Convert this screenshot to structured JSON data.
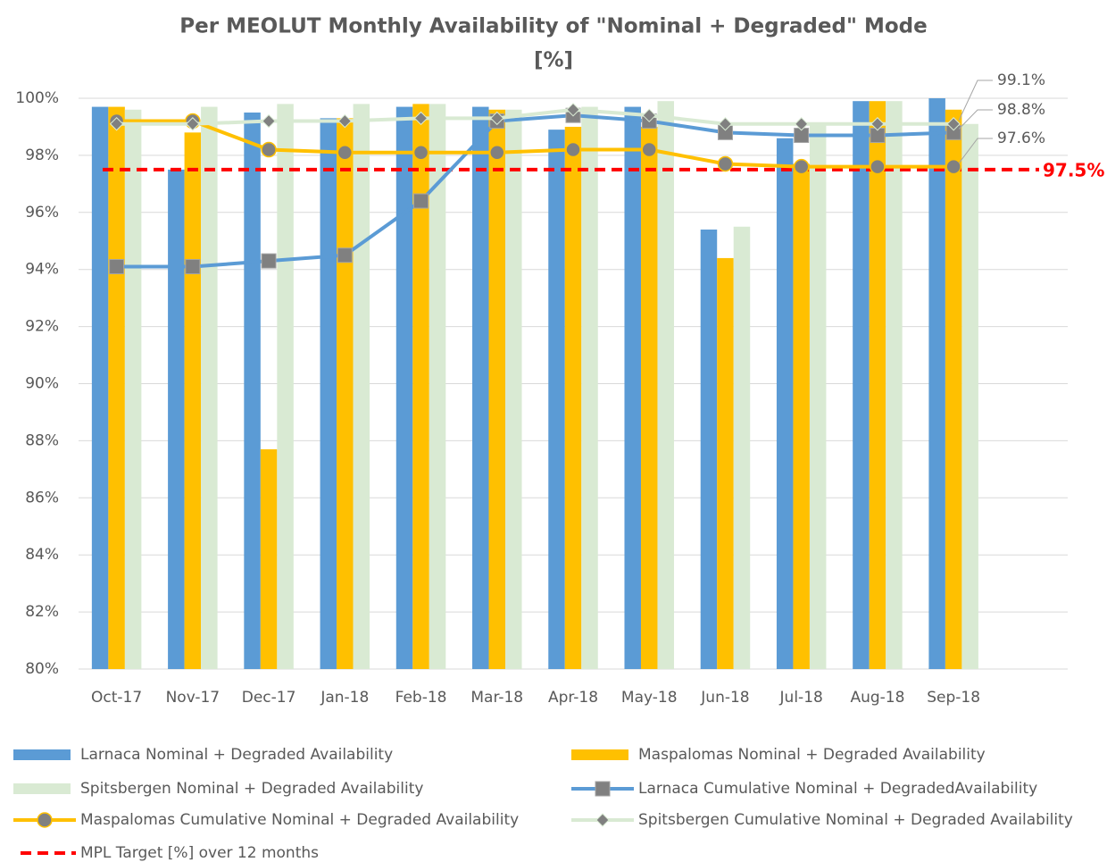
{
  "chart_data": {
    "type": "bar",
    "title": [
      "Per MEOLUT Monthly Availability of \"Nominal + Degraded\" Mode",
      "[%]"
    ],
    "categories": [
      "Oct-17",
      "Nov-17",
      "Dec-17",
      "Jan-18",
      "Feb-18",
      "Mar-18",
      "Apr-18",
      "May-18",
      "Jun-18",
      "Jul-18",
      "Aug-18",
      "Sep-18",
      null
    ],
    "ylim": [
      80,
      100
    ],
    "yticks": [
      {
        "value": 80,
        "label": "80%"
      },
      {
        "value": 82,
        "label": "82%"
      },
      {
        "value": 84,
        "label": "84%"
      },
      {
        "value": 86,
        "label": "86%"
      },
      {
        "value": 88,
        "label": "88%"
      },
      {
        "value": 90,
        "label": "90%"
      },
      {
        "value": 92,
        "label": "92%"
      },
      {
        "value": 94,
        "label": "94%"
      },
      {
        "value": 96,
        "label": "96%"
      },
      {
        "value": 98,
        "label": "98%"
      },
      {
        "value": 100,
        "label": "100%"
      }
    ],
    "grid": true,
    "series": [
      {
        "name": "Larnaca Nominal + Degraded Availability",
        "type": "bar",
        "color": "#5b9bd5",
        "values": [
          99.7,
          97.5,
          99.5,
          99.3,
          99.7,
          99.7,
          98.9,
          99.7,
          95.4,
          98.6,
          99.9,
          100,
          null
        ]
      },
      {
        "name": "Maspalomas Nominal + Degraded Availability",
        "type": "bar",
        "color": "#ffc000",
        "values": [
          99.7,
          98.8,
          87.7,
          99.3,
          99.8,
          99.6,
          99.0,
          99.0,
          94.4,
          97.7,
          99.9,
          99.6,
          null
        ]
      },
      {
        "name": "Spitsbergen Nominal + Degraded Availability",
        "type": "bar",
        "color": "#d9ead3",
        "values": [
          99.6,
          99.7,
          99.8,
          99.8,
          99.8,
          99.6,
          99.7,
          99.9,
          95.5,
          99.1,
          99.9,
          99.1,
          null
        ]
      },
      {
        "name": "Larnaca Cumulative Nominal + DegradedAvailability",
        "type": "line",
        "color": "#5b9bd5",
        "marker": "square",
        "marker_color": "#808080",
        "values": [
          94.1,
          94.1,
          94.3,
          94.5,
          96.4,
          99.2,
          99.4,
          99.2,
          98.8,
          98.7,
          98.7,
          98.8,
          null
        ],
        "value_labels": [
          null,
          null,
          null,
          null,
          null,
          null,
          null,
          null,
          null,
          null,
          null,
          "98.8%",
          null
        ]
      },
      {
        "name": "Maspalomas Cumulative Nominal + Degraded Availability",
        "type": "line",
        "color": "#ffc000",
        "marker": "circle",
        "marker_color": "#808080",
        "values": [
          99.2,
          99.2,
          98.2,
          98.1,
          98.1,
          98.1,
          98.2,
          98.2,
          97.7,
          97.6,
          97.6,
          97.6,
          null
        ],
        "value_labels": [
          null,
          null,
          null,
          null,
          null,
          null,
          null,
          null,
          null,
          null,
          null,
          "97.6%",
          null
        ]
      },
      {
        "name": "Spitsbergen Cumulative Nominal + Degraded Availability",
        "type": "line",
        "color": "#d9ead3",
        "marker": "diamond",
        "marker_color": "#808080",
        "values": [
          99.1,
          99.1,
          99.2,
          99.2,
          99.3,
          99.3,
          99.6,
          99.4,
          99.1,
          99.1,
          99.1,
          99.1,
          null
        ],
        "value_labels": [
          null,
          null,
          null,
          null,
          null,
          null,
          null,
          null,
          null,
          null,
          null,
          "99.1%",
          null
        ]
      }
    ],
    "target": {
      "name": "MPL Target [%] over 12 months",
      "value": 97.5,
      "value_label": "97.5%",
      "color": "#ff0000"
    }
  }
}
